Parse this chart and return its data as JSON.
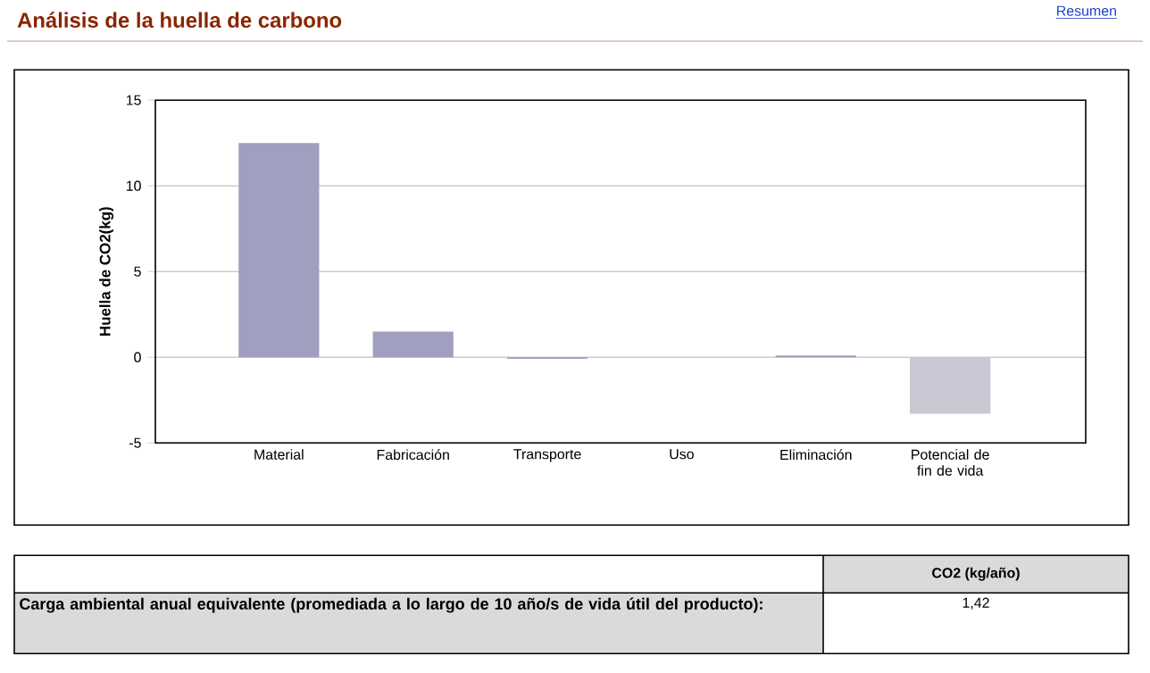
{
  "chart_data": {
    "type": "bar",
    "title": "Análisis de la huella de carbono",
    "ylabel": "Huella de CO2(kg)",
    "categories": [
      "Material",
      "Fabricación",
      "Transporte",
      "Uso",
      "Eliminación",
      "Potencial de fin de vida"
    ],
    "values": [
      12.5,
      1.5,
      -0.1,
      0,
      0.1,
      -3.3
    ],
    "colors": [
      "#a09fc0",
      "#a09fc0",
      "#a09fc0",
      "#a09fc0",
      "#a09fc0",
      "#c8c8d4"
    ],
    "ylim": [
      -5,
      15
    ],
    "yticks": [
      -5,
      0,
      5,
      10,
      15
    ],
    "grid": "y",
    "annotations": [
      "Resumen",
      "CO2 (kg/año)",
      "Carga ambiental anual equivalente (promediada a lo largo de 10 año/s de vida útil del producto):",
      "1,42"
    ]
  }
}
